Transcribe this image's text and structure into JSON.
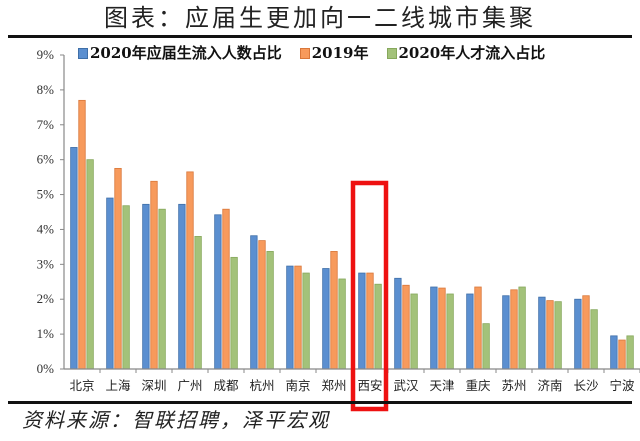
{
  "title": "图表：应届生更加向一二线城市集聚",
  "source": "资料来源：智联招聘，泽平宏观",
  "highlight": {
    "category": "西安",
    "color": "#ee1111"
  },
  "colors": {
    "blue": "#5b8fd0",
    "orange": "#f79a5c",
    "green": "#a3c27a"
  },
  "legend": [
    {
      "label": "2020年应届生流入人数占比",
      "color": "#5b8fd0"
    },
    {
      "label": "2019年",
      "color": "#f79a5c"
    },
    {
      "label": "2020年人才流入占比",
      "color": "#a3c27a"
    }
  ],
  "chart_data": {
    "type": "bar",
    "title": "图表：应届生更加向一二线城市集聚",
    "xlabel": "",
    "ylabel": "",
    "ylim": [
      0,
      9
    ],
    "y_ticks": [
      "0%",
      "1%",
      "2%",
      "3%",
      "4%",
      "5%",
      "6%",
      "7%",
      "8%",
      "9%"
    ],
    "grid": false,
    "legend_position": "top",
    "categories": [
      "北京",
      "上海",
      "深圳",
      "广州",
      "成都",
      "杭州",
      "南京",
      "郑州",
      "西安",
      "武汉",
      "天津",
      "重庆",
      "苏州",
      "济南",
      "长沙",
      "宁波"
    ],
    "series": [
      {
        "name": "2020年应届生流入人数占比",
        "values": [
          6.35,
          4.9,
          4.72,
          4.72,
          4.42,
          3.82,
          2.95,
          2.88,
          2.75,
          2.6,
          2.35,
          2.15,
          2.1,
          2.06,
          2.0,
          0.95
        ]
      },
      {
        "name": "2019年",
        "values": [
          7.7,
          5.75,
          5.38,
          5.65,
          4.58,
          3.68,
          2.95,
          3.37,
          2.75,
          2.4,
          2.32,
          2.35,
          2.27,
          1.96,
          2.1,
          0.83
        ]
      },
      {
        "name": "2020年人才流入占比",
        "values": [
          6.0,
          4.68,
          4.58,
          3.8,
          3.2,
          3.37,
          2.75,
          2.58,
          2.43,
          2.15,
          2.15,
          1.3,
          2.35,
          1.93,
          1.7,
          0.95
        ]
      }
    ],
    "annotations": [
      {
        "type": "rectangle",
        "target": "西安",
        "color": "#ee1111"
      }
    ],
    "source": "资料来源：智联招聘，泽平宏观"
  }
}
